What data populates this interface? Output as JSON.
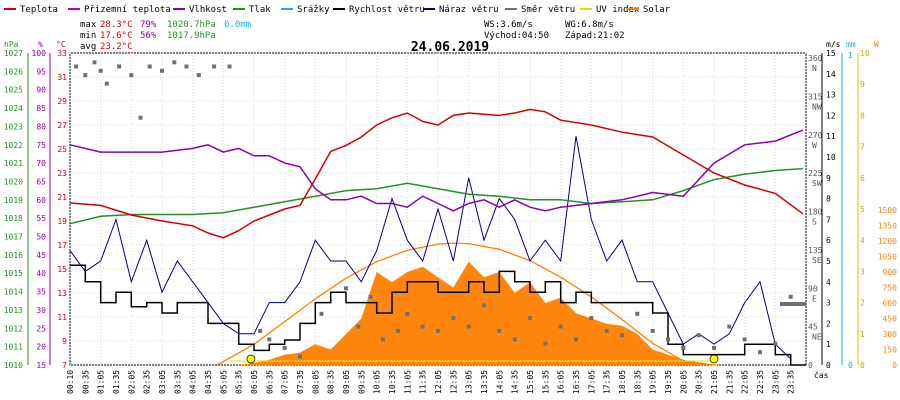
{
  "title": "24.06.2019",
  "legend": [
    {
      "name": "Teplota",
      "color": "#d40000"
    },
    {
      "name": "Přizemní teplota",
      "color": "#b000c8"
    },
    {
      "name": "Vlhkost",
      "color": "#8a00b0"
    },
    {
      "name": "Tlak",
      "color": "#2a8c2a"
    },
    {
      "name": "Srážky",
      "color": "#1ab0d0"
    },
    {
      "name": "Rychlost větru",
      "color": "#000000"
    },
    {
      "name": "Náraz větru",
      "color": "#00008c"
    },
    {
      "name": "Směr větru",
      "color": "#707070"
    },
    {
      "name": "UV index",
      "color": "#e0e000"
    },
    {
      "name": "Solar",
      "color": "#ff8000"
    }
  ],
  "stats": {
    "max_label": "max",
    "max_temp": "28.3°C",
    "max_hum": "79%",
    "max_press": "1020.7hPa",
    "rain": "0.0mm",
    "min_label": "min",
    "min_temp": "17.6°C",
    "min_hum": "56%",
    "min_press": "1017.9hPa",
    "avg_label": "avg",
    "avg_temp": "23.2°C",
    "ws": "WS:3.6m/s",
    "wg": "WG:6.8m/s",
    "sunrise": "Východ:04:50",
    "sunset": "Západ:21:02"
  },
  "chart_data": {
    "type": "line",
    "title": "24.06.2019",
    "xlabel": "čas",
    "x_ticks": [
      "00:10",
      "00:35",
      "01:05",
      "01:35",
      "02:05",
      "02:35",
      "03:05",
      "03:35",
      "04:05",
      "04:35",
      "05:05",
      "05:35",
      "06:05",
      "06:35",
      "07:05",
      "07:35",
      "08:05",
      "08:35",
      "09:05",
      "09:35",
      "10:05",
      "10:35",
      "11:05",
      "11:35",
      "12:05",
      "12:35",
      "13:05",
      "13:35",
      "14:05",
      "14:35",
      "15:05",
      "15:35",
      "16:05",
      "16:35",
      "17:05",
      "17:35",
      "18:05",
      "18:35",
      "19:05",
      "19:35",
      "20:05",
      "20:35",
      "21:05",
      "21:35",
      "22:05",
      "22:35",
      "23:05",
      "23:35"
    ],
    "axes": {
      "pressure": {
        "unit": "hPa",
        "ticks": [
          "1027",
          "1026",
          "1025",
          "1024",
          "1023",
          "1022",
          "1021",
          "1020",
          "1019",
          "1018",
          "1017",
          "1016",
          "1015",
          "1014",
          "1013",
          "1012",
          "1011",
          "1010"
        ],
        "range": [
          1010,
          1027
        ]
      },
      "humidity": {
        "unit": "%",
        "ticks": [
          "100",
          "95",
          "90",
          "85",
          "80",
          "75",
          "70",
          "65",
          "60",
          "55",
          "50",
          "45",
          "40",
          "35",
          "30",
          "25",
          "20",
          "15"
        ]
      },
      "temperature": {
        "unit": "°C",
        "ticks": [
          "33",
          "31",
          "29",
          "27",
          "25",
          "23",
          "21",
          "19",
          "17",
          "15",
          "13",
          "11",
          "9",
          "7"
        ],
        "range": [
          7,
          33
        ]
      },
      "wind_dir": {
        "ticks": [
          "360",
          "315",
          "270",
          "225",
          "180",
          "135",
          "90",
          "45",
          "0"
        ],
        "labels": [
          "N",
          "NW",
          "W",
          "SW",
          "S",
          "SE",
          "E",
          "NE"
        ]
      },
      "wind_speed": {
        "unit": "m/s",
        "ticks": [
          "15",
          "14",
          "13",
          "12",
          "11",
          "10",
          "9",
          "8",
          "7",
          "6",
          "5",
          "4",
          "3",
          "2",
          "1",
          "0"
        ],
        "range": [
          0,
          15
        ]
      },
      "rain": {
        "unit": "mm",
        "ticks": [
          "1",
          "0"
        ]
      },
      "uv": {
        "unit": "W",
        "ticks": [
          "10",
          "9",
          "8",
          "7",
          "6",
          "5",
          "4",
          "3",
          "2",
          "1",
          "0"
        ]
      },
      "solar": {
        "ticks": [
          "1500",
          "1350",
          "1200",
          "1050",
          "900",
          "750",
          "600",
          "450",
          "300",
          "150",
          "0"
        ],
        "range": [
          0,
          1500
        ]
      }
    },
    "series": [
      {
        "name": "Teplota",
        "axis": "temperature",
        "color": "#d40000",
        "x": [
          0,
          1,
          2,
          3,
          4,
          4.5,
          5,
          5.5,
          6,
          6.5,
          7,
          7.5,
          8,
          8.5,
          9,
          9.5,
          10,
          10.5,
          11,
          11.5,
          12,
          12.5,
          13,
          13.5,
          14,
          14.5,
          15,
          15.5,
          16,
          17,
          18,
          19,
          20,
          21,
          22,
          23,
          23.9
        ],
        "y": [
          20.5,
          20.3,
          19.5,
          19.0,
          18.6,
          18.0,
          17.6,
          18.2,
          19.0,
          19.5,
          20.0,
          20.3,
          22.5,
          24.8,
          25.3,
          26.0,
          27.0,
          27.6,
          28.0,
          27.3,
          27.0,
          27.8,
          28.0,
          27.9,
          27.8,
          28.0,
          28.3,
          28.1,
          27.4,
          27.0,
          26.4,
          26.0,
          24.5,
          23.0,
          22.0,
          21.3,
          19.6
        ]
      },
      {
        "name": "Vlhkost",
        "axis": "humidity",
        "color": "#8a00b0",
        "x": [
          0,
          1,
          2,
          3,
          4,
          4.5,
          5,
          5.5,
          6,
          6.5,
          7,
          7.5,
          8,
          8.5,
          9,
          9.5,
          10,
          10.5,
          11,
          11.5,
          12,
          12.5,
          13,
          13.5,
          14,
          14.5,
          15,
          15.5,
          16,
          17,
          18,
          19,
          20,
          21,
          22,
          23,
          23.9
        ],
        "y": [
          75,
          73,
          73,
          73,
          74,
          75,
          73,
          74,
          72,
          72,
          70,
          69,
          63,
          60,
          60,
          61,
          59,
          59,
          58,
          61,
          59,
          57,
          59,
          60,
          58,
          60,
          58,
          57,
          58,
          59,
          60,
          62,
          61,
          70,
          75,
          76,
          79
        ]
      },
      {
        "name": "Tlak",
        "axis": "pressure",
        "color": "#2a8c2a",
        "x": [
          0,
          1,
          2,
          3,
          4,
          5,
          6,
          7,
          8,
          9,
          10,
          11,
          12,
          13,
          14,
          15,
          16,
          17,
          18,
          19,
          20,
          21,
          22,
          23,
          23.9
        ],
        "y": [
          1017.7,
          1018.1,
          1018.2,
          1018.2,
          1018.2,
          1018.3,
          1018.6,
          1018.9,
          1019.2,
          1019.5,
          1019.6,
          1019.9,
          1019.6,
          1019.3,
          1019.2,
          1019.0,
          1019.0,
          1018.8,
          1018.9,
          1019.0,
          1019.5,
          1020.1,
          1020.4,
          1020.6,
          1020.7
        ]
      },
      {
        "name": "Rychlost větru",
        "axis": "wind_speed",
        "color": "#000000",
        "x": [
          0,
          0.5,
          1,
          1.5,
          2,
          2.5,
          3,
          3.5,
          4,
          4.5,
          5,
          5.5,
          6,
          6.5,
          7,
          7.5,
          8,
          8.5,
          9,
          9.5,
          10,
          10.5,
          11,
          11.5,
          12,
          12.5,
          13,
          13.5,
          14,
          14.5,
          15,
          15.5,
          16,
          16.5,
          17,
          17.5,
          18,
          18.5,
          19,
          19.5,
          20,
          20.5,
          21,
          21.5,
          22,
          22.5,
          23,
          23.5
        ],
        "y": [
          4.8,
          4.0,
          3.0,
          3.5,
          2.8,
          3.0,
          2.5,
          3.0,
          3.0,
          2.0,
          2.0,
          1.0,
          0.7,
          1.0,
          1.2,
          2.0,
          3.0,
          3.5,
          3.0,
          3.0,
          2.5,
          3.5,
          4.0,
          4.0,
          3.5,
          3.5,
          4.0,
          3.5,
          4.5,
          4.0,
          3.5,
          4.0,
          3.0,
          3.5,
          3.0,
          3.0,
          3.0,
          3.0,
          2.5,
          1.0,
          0.5,
          0.5,
          0.5,
          0.5,
          1.0,
          1.0,
          0.5,
          0.0
        ]
      },
      {
        "name": "Náraz větru",
        "axis": "wind_speed",
        "color": "#00008c",
        "x": [
          0,
          0.5,
          1,
          1.5,
          2,
          2.5,
          3,
          3.5,
          4,
          4.5,
          5,
          5.5,
          6,
          6.5,
          7,
          7.5,
          8,
          8.5,
          9,
          9.5,
          10,
          10.5,
          11,
          11.5,
          12,
          12.5,
          13,
          13.5,
          14,
          14.5,
          15,
          15.5,
          16,
          16.5,
          17,
          17.5,
          18,
          18.5,
          19,
          19.5,
          20,
          20.5,
          21,
          21.5,
          22,
          22.5,
          23,
          23.5
        ],
        "y": [
          5.5,
          4.5,
          5.0,
          7.0,
          4.0,
          6.0,
          3.5,
          5.0,
          4.0,
          3.0,
          2.0,
          1.5,
          1.5,
          3.0,
          3.0,
          4.0,
          6.0,
          5.0,
          5.0,
          4.0,
          5.5,
          8.0,
          6.0,
          5.0,
          7.5,
          5.0,
          9.0,
          6.0,
          8.0,
          7.0,
          5.0,
          6.0,
          5.0,
          11.0,
          7.0,
          5.0,
          6.0,
          4.0,
          4.0,
          2.5,
          1.0,
          1.5,
          1.0,
          1.5,
          3.0,
          4.0,
          1.0,
          0.3
        ]
      },
      {
        "name": "Solar",
        "axis": "solar",
        "color": "#ff8000",
        "x": [
          4.8,
          5.5,
          6,
          6.5,
          7,
          7.5,
          8,
          8.5,
          9,
          9.5,
          10,
          10.5,
          11,
          11.5,
          12,
          12.5,
          13,
          13.5,
          14,
          14.5,
          15,
          15.5,
          16,
          16.5,
          17,
          17.5,
          18,
          18.5,
          19,
          19.5,
          20,
          20.5,
          21,
          21.1
        ],
        "y": [
          0,
          0,
          20,
          50,
          100,
          120,
          200,
          150,
          300,
          450,
          900,
          800,
          900,
          950,
          850,
          750,
          1000,
          850,
          900,
          700,
          800,
          600,
          650,
          500,
          450,
          400,
          380,
          300,
          150,
          100,
          50,
          20,
          0,
          0
        ]
      },
      {
        "name": "Solar max",
        "axis": "solar",
        "color": "#ff8000",
        "x": [
          4.8,
          6,
          7,
          8,
          9,
          10,
          11,
          12,
          12.5,
          13,
          14,
          15,
          16,
          17,
          18,
          19,
          20,
          21,
          21.1
        ],
        "y": [
          0,
          200,
          420,
          640,
          840,
          1000,
          1110,
          1170,
          1180,
          1175,
          1120,
          1010,
          850,
          660,
          440,
          210,
          40,
          0,
          0
        ]
      },
      {
        "name": "UV index",
        "axis": "uv",
        "color": "#e0e000",
        "x": [
          5.2,
          21.0
        ],
        "y": [
          0.3,
          0.3
        ]
      },
      {
        "name": "Směr větru",
        "axis": "wind_dir",
        "color": "#707070",
        "x": [
          0.2,
          0.5,
          0.8,
          1.0,
          1.2,
          1.6,
          2.0,
          2.3,
          2.6,
          3.0,
          3.4,
          3.8,
          4.2,
          4.7,
          5.2,
          6.2,
          6.5,
          7.0,
          7.5,
          8.2,
          9.0,
          9.4,
          9.8,
          10.2,
          10.7,
          11.0,
          11.5,
          12.0,
          12.5,
          13.0,
          13.5,
          14.0,
          14.5,
          15.0,
          15.5,
          16.0,
          16.5,
          17.0,
          17.5,
          18.0,
          18.5,
          19.0,
          19.5,
          20.0,
          20.5,
          21.0,
          21.5,
          22.0,
          22.5,
          23.0,
          23.5
        ],
        "y": [
          350,
          340,
          355,
          345,
          330,
          350,
          340,
          290,
          350,
          345,
          355,
          350,
          340,
          350,
          350,
          40,
          30,
          20,
          10,
          60,
          90,
          45,
          80,
          30,
          40,
          60,
          45,
          40,
          55,
          45,
          70,
          40,
          30,
          55,
          25,
          45,
          30,
          55,
          40,
          35,
          60,
          40,
          30,
          20,
          35,
          20,
          45,
          30,
          15,
          25,
          80
        ]
      }
    ]
  }
}
